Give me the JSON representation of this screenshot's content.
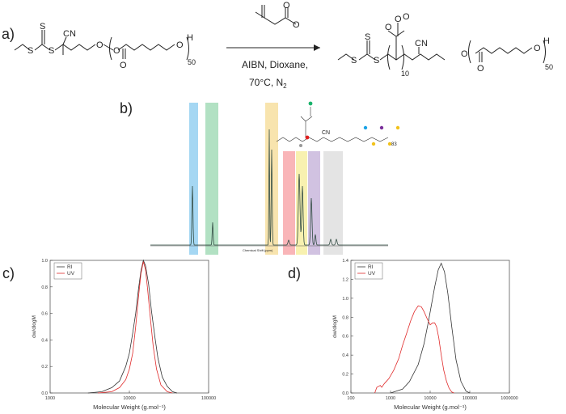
{
  "panels": {
    "a": "a)",
    "b": "b)",
    "c": "c)",
    "d": "d)"
  },
  "scheme": {
    "reagents": [
      "AIBN, Dioxane,",
      "70°C, N"
    ],
    "reagent_sub": "2",
    "labels": {
      "S": "S",
      "CN": "CN",
      "O": "O",
      "H": "H",
      "n50": "50",
      "n10": "10"
    }
  },
  "nmr": {
    "axis_label": "Chemical Shift (ppm)",
    "inset_n": "83",
    "inset_cn": "CN",
    "highlight_colors": [
      "#8ecdf0",
      "#9fd9b4",
      "#f6dd9a",
      "#f7a3a6",
      "#f6ee9c",
      "#c6b3d9",
      "#dddddd"
    ],
    "dot_colors": [
      "#19b36b",
      "#e02020",
      "#999999",
      "#1aa3e6",
      "#7a2f9a",
      "#f2c21b"
    ]
  },
  "chart_data": [
    {
      "id": "c",
      "type": "line",
      "xlabel": "Molecular Weight (g.mol⁻¹)",
      "ylabel": "dw/dlogM",
      "xscale": "log",
      "xlim": [
        1000,
        100000
      ],
      "ylim": [
        0,
        1.0
      ],
      "xticks": [
        "1000",
        "10000",
        "100000"
      ],
      "yticks": [
        "0.0",
        "0.2",
        "0.4",
        "0.6",
        "0.8",
        "1.0"
      ],
      "legend": {
        "position": "top-left"
      },
      "series": [
        {
          "name": "RI",
          "color": "#333333",
          "points": [
            [
              3000,
              0.0
            ],
            [
              4500,
              0.01
            ],
            [
              6000,
              0.04
            ],
            [
              7500,
              0.09
            ],
            [
              9000,
              0.2
            ],
            [
              10000,
              0.3
            ],
            [
              11000,
              0.45
            ],
            [
              12000,
              0.6
            ],
            [
              13000,
              0.78
            ],
            [
              14000,
              0.92
            ],
            [
              15000,
              1.0
            ],
            [
              16000,
              0.96
            ],
            [
              17500,
              0.82
            ],
            [
              19000,
              0.62
            ],
            [
              21000,
              0.42
            ],
            [
              23000,
              0.26
            ],
            [
              26000,
              0.12
            ],
            [
              30000,
              0.05
            ],
            [
              35000,
              0.01
            ],
            [
              40000,
              0.0
            ]
          ]
        },
        {
          "name": "UV",
          "color": "#e02a2a",
          "points": [
            [
              4000,
              0.0
            ],
            [
              6000,
              0.01
            ],
            [
              7500,
              0.04
            ],
            [
              9000,
              0.1
            ],
            [
              10000,
              0.18
            ],
            [
              11000,
              0.3
            ],
            [
              12000,
              0.5
            ],
            [
              13000,
              0.72
            ],
            [
              14000,
              0.9
            ],
            [
              15000,
              0.99
            ],
            [
              16000,
              0.93
            ],
            [
              17000,
              0.78
            ],
            [
              18500,
              0.55
            ],
            [
              20000,
              0.35
            ],
            [
              22000,
              0.18
            ],
            [
              25000,
              0.06
            ],
            [
              30000,
              0.01
            ],
            [
              35000,
              0.0
            ]
          ]
        }
      ]
    },
    {
      "id": "d",
      "type": "line",
      "xlabel": "Molecular Weight (g.mol⁻¹)",
      "ylabel": "dw/dlogM",
      "xscale": "log",
      "xlim": [
        100,
        1000000
      ],
      "ylim": [
        0,
        1.4
      ],
      "xticks": [
        "100",
        "1000",
        "10000",
        "100000",
        "1000000"
      ],
      "yticks": [
        "0.0",
        "0.2",
        "0.4",
        "0.6",
        "0.8",
        "1.0",
        "1.2",
        "1.4"
      ],
      "legend": {
        "position": "top-left"
      },
      "series": [
        {
          "name": "RI",
          "color": "#333333",
          "points": [
            [
              1000,
              0.0
            ],
            [
              2000,
              0.04
            ],
            [
              3000,
              0.12
            ],
            [
              5000,
              0.3
            ],
            [
              7000,
              0.52
            ],
            [
              9000,
              0.75
            ],
            [
              11000,
              0.95
            ],
            [
              13000,
              1.12
            ],
            [
              16000,
              1.3
            ],
            [
              19000,
              1.37
            ],
            [
              23000,
              1.28
            ],
            [
              28000,
              1.05
            ],
            [
              35000,
              0.7
            ],
            [
              45000,
              0.35
            ],
            [
              60000,
              0.12
            ],
            [
              80000,
              0.02
            ],
            [
              100000,
              0.0
            ]
          ]
        },
        {
          "name": "UV",
          "color": "#e02a2a",
          "points": [
            [
              400,
              0.0
            ],
            [
              450,
              0.06
            ],
            [
              500,
              0.07
            ],
            [
              550,
              0.08
            ],
            [
              600,
              0.06
            ],
            [
              700,
              0.1
            ],
            [
              900,
              0.15
            ],
            [
              1200,
              0.24
            ],
            [
              1600,
              0.36
            ],
            [
              2000,
              0.5
            ],
            [
              2600,
              0.64
            ],
            [
              3200,
              0.76
            ],
            [
              4000,
              0.86
            ],
            [
              5000,
              0.92
            ],
            [
              6000,
              0.91
            ],
            [
              7000,
              0.86
            ],
            [
              8500,
              0.78
            ],
            [
              10000,
              0.72
            ],
            [
              11500,
              0.74
            ],
            [
              13000,
              0.74
            ],
            [
              14500,
              0.7
            ],
            [
              16500,
              0.58
            ],
            [
              19000,
              0.4
            ],
            [
              22000,
              0.24
            ],
            [
              26000,
              0.12
            ],
            [
              30000,
              0.05
            ],
            [
              35000,
              0.01
            ],
            [
              40000,
              0.0
            ]
          ]
        }
      ]
    }
  ]
}
